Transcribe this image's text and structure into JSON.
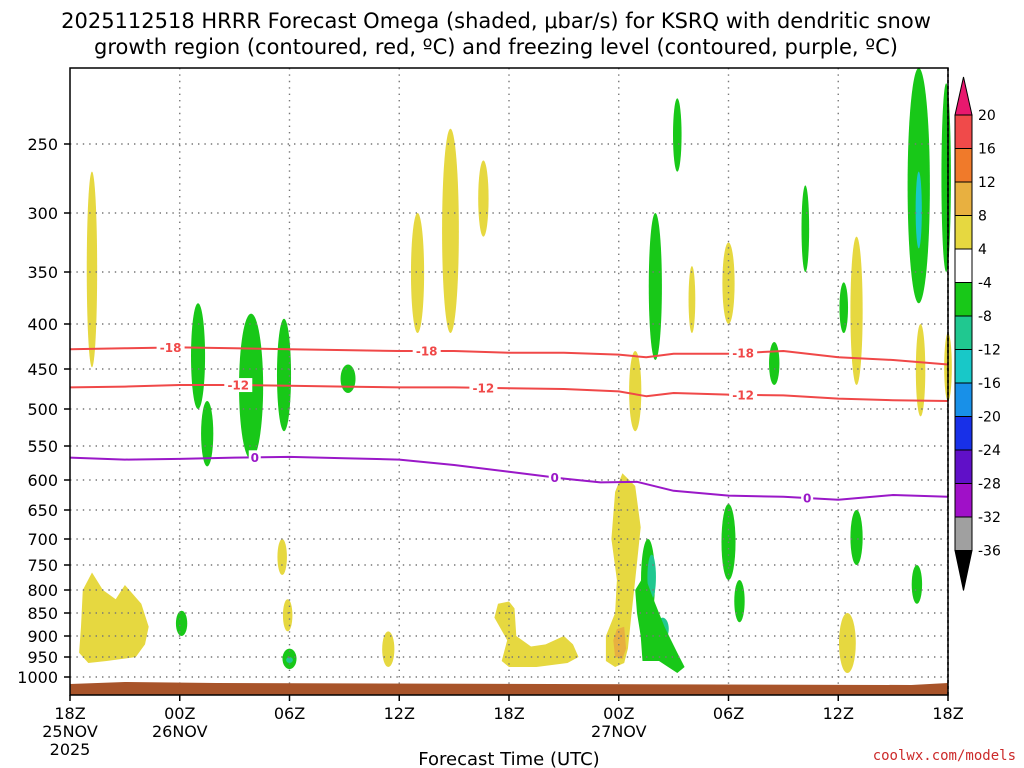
{
  "chart_data": {
    "type": "contour",
    "title_line1": "2025112518 HRRR Forecast Omega (shaded, μbar/s) for KSRQ with dendritic snow",
    "title_line2": "growth region (contoured, red, ºC) and freezing level (contoured, purple, ºC)",
    "xlabel": "Forecast Time (UTC)",
    "credit": "coolwx.com/models",
    "x_range_hours": [
      0,
      48
    ],
    "y_range_hpa": [
      1030,
      200
    ],
    "x_ticks": [
      {
        "h": 0,
        "l1": "18Z",
        "l2": "25NOV",
        "l3": "2025"
      },
      {
        "h": 6,
        "l1": "00Z",
        "l2": "26NOV",
        "l3": ""
      },
      {
        "h": 12,
        "l1": "06Z",
        "l2": "",
        "l3": ""
      },
      {
        "h": 18,
        "l1": "12Z",
        "l2": "",
        "l3": ""
      },
      {
        "h": 24,
        "l1": "18Z",
        "l2": "",
        "l3": ""
      },
      {
        "h": 30,
        "l1": "00Z",
        "l2": "27NOV",
        "l3": ""
      },
      {
        "h": 36,
        "l1": "06Z",
        "l2": "",
        "l3": ""
      },
      {
        "h": 42,
        "l1": "12Z",
        "l2": "",
        "l3": ""
      },
      {
        "h": 48,
        "l1": "18Z",
        "l2": "",
        "l3": ""
      }
    ],
    "y_ticks": [
      250,
      300,
      350,
      400,
      450,
      500,
      550,
      600,
      650,
      700,
      750,
      800,
      850,
      900,
      950,
      1000
    ],
    "colorbar": {
      "labels": [
        "20",
        "16",
        "12",
        "8",
        "4",
        "-4",
        "-8",
        "-12",
        "-16",
        "-20",
        "-24",
        "-28",
        "-32",
        "-36"
      ],
      "colors": [
        "#e8186e",
        "#f04a4a",
        "#f07a2a",
        "#e8b040",
        "#e6d840",
        "#ffffff",
        "#18c818",
        "#20c890",
        "#18c8c8",
        "#1890e8",
        "#1830e8",
        "#6010c8",
        "#a010c8",
        "#a0a0a0",
        "#000000"
      ]
    },
    "contours": [
      {
        "name": "dendritic-18C-isotherm",
        "label": "-18",
        "color": "#f04848",
        "x": [
          0,
          3,
          6,
          9,
          12,
          15,
          18,
          21,
          24,
          27,
          30,
          31.5,
          33,
          36,
          39,
          42,
          45,
          48
        ],
        "y": [
          428,
          427,
          426,
          427,
          428,
          429,
          430,
          430,
          432,
          432,
          434,
          437,
          433,
          433,
          430,
          437,
          440,
          445
        ],
        "label_hours": [
          5.5,
          19.5,
          36.8
        ]
      },
      {
        "name": "dendritic-12C-isotherm",
        "label": "-12",
        "color": "#f04848",
        "x": [
          0,
          3,
          6,
          9,
          12,
          15,
          18,
          21,
          24,
          27,
          30,
          31.5,
          33,
          36,
          39,
          42,
          45,
          48
        ],
        "y": [
          473,
          472,
          470,
          470,
          471,
          472,
          473,
          473,
          474,
          475,
          478,
          484,
          480,
          482,
          483,
          487,
          489,
          490
        ],
        "label_hours": [
          9.2,
          22.6,
          36.8
        ]
      },
      {
        "name": "freezing-level-0C",
        "label": "0",
        "color": "#9a18c8",
        "x": [
          0,
          3,
          6,
          9,
          12,
          15,
          18,
          21,
          24,
          27,
          29,
          31,
          33,
          36,
          39,
          42,
          45,
          48
        ],
        "y": [
          567,
          570,
          569,
          567,
          566,
          568,
          570,
          578,
          588,
          598,
          604,
          603,
          618,
          626,
          628,
          633,
          625,
          628
        ],
        "label_hours": [
          10.1,
          26.5,
          40.3
        ]
      }
    ],
    "shaded_regions": [
      {
        "h": 1.2,
        "p0": 270,
        "p1": 448,
        "w": 0.35,
        "c": "#e6d840"
      },
      {
        "h": 22.6,
        "p0": 262,
        "p1": 320,
        "w": 0.35,
        "c": "#e6d840"
      },
      {
        "h": 20.8,
        "p0": 240,
        "p1": 410,
        "w": 0.7,
        "c": "#e6d840"
      },
      {
        "h": 19.0,
        "p0": 300,
        "p1": 410,
        "w": 0.5,
        "c": "#e6d840"
      },
      {
        "h": 36.0,
        "p0": 325,
        "p1": 400,
        "w": 0.45,
        "c": "#e6d840"
      },
      {
        "h": 34.0,
        "p0": 345,
        "p1": 410,
        "w": 0.15,
        "c": "#e6d840"
      },
      {
        "h": 43.0,
        "p0": 320,
        "p1": 470,
        "w": 0.45,
        "c": "#e6d840"
      },
      {
        "h": 46.5,
        "p0": 400,
        "p1": 510,
        "w": 0.3,
        "c": "#e6d840"
      },
      {
        "h": 30.9,
        "p0": 430,
        "p1": 530,
        "w": 0.45,
        "c": "#e6d840"
      },
      {
        "h": 48.0,
        "p0": 410,
        "p1": 490,
        "w": 0.2,
        "c": "#e6d840"
      },
      {
        "h": 11.6,
        "p0": 700,
        "p1": 770,
        "w": 0.3,
        "c": "#e6d840"
      },
      {
        "h": 11.9,
        "p0": 820,
        "p1": 890,
        "w": 0.3,
        "c": "#e6d840"
      },
      {
        "h": 17.4,
        "p0": 890,
        "p1": 975,
        "w": 0.45,
        "c": "#e6d840"
      },
      {
        "h": 36.7,
        "p0": 790,
        "p1": 860,
        "w": 0.12,
        "c": "#e6d840"
      },
      {
        "h": 42.5,
        "p0": 850,
        "p1": 990,
        "w": 0.7,
        "c": "#e6d840"
      },
      {
        "h": 7.0,
        "p0": 380,
        "p1": 500,
        "w": 0.55,
        "c": "#18c818"
      },
      {
        "h": 7.5,
        "p0": 490,
        "p1": 580,
        "w": 0.45,
        "c": "#18c818"
      },
      {
        "h": 9.9,
        "p0": 390,
        "p1": 570,
        "w": 1.1,
        "c": "#18c818"
      },
      {
        "h": 11.7,
        "p0": 395,
        "p1": 530,
        "w": 0.55,
        "c": "#18c818"
      },
      {
        "h": 15.2,
        "p0": 445,
        "p1": 480,
        "w": 0.6,
        "c": "#18c818"
      },
      {
        "h": 33.2,
        "p0": 220,
        "p1": 270,
        "w": 0.25,
        "c": "#18c818"
      },
      {
        "h": 32.0,
        "p0": 300,
        "p1": 440,
        "w": 0.5,
        "c": "#18c818"
      },
      {
        "h": 38.5,
        "p0": 420,
        "p1": 470,
        "w": 0.35,
        "c": "#18c818"
      },
      {
        "h": 40.2,
        "p0": 280,
        "p1": 350,
        "w": 0.2,
        "c": "#18c818"
      },
      {
        "h": 42.3,
        "p0": 360,
        "p1": 410,
        "w": 0.25,
        "c": "#18c818"
      },
      {
        "h": 46.4,
        "p0": 200,
        "p1": 380,
        "w": 1.0,
        "c": "#18c818"
      },
      {
        "h": 47.9,
        "p0": 210,
        "p1": 350,
        "w": 0.3,
        "c": "#18c818"
      },
      {
        "h": 36.0,
        "p0": 640,
        "p1": 780,
        "w": 0.55,
        "c": "#18c818"
      },
      {
        "h": 43.0,
        "p0": 650,
        "p1": 750,
        "w": 0.45,
        "c": "#18c818"
      },
      {
        "h": 46.3,
        "p0": 750,
        "p1": 830,
        "w": 0.35,
        "c": "#18c818"
      },
      {
        "h": 36.6,
        "p0": 780,
        "p1": 870,
        "w": 0.35,
        "c": "#18c818"
      },
      {
        "h": 6.1,
        "p0": 845,
        "p1": 900,
        "w": 0.4,
        "c": "#18c818"
      },
      {
        "h": 12.0,
        "p0": 930,
        "p1": 980,
        "w": 0.55,
        "c": "#18c818"
      },
      {
        "h": 31.6,
        "p0": 700,
        "p1": 870,
        "w": 0.55,
        "c": "#18c818"
      },
      {
        "h": 31.8,
        "p0": 730,
        "p1": 820,
        "w": 0.25,
        "c": "#20c890"
      },
      {
        "h": 32.4,
        "p0": 860,
        "p1": 910,
        "w": 0.45,
        "c": "#20c890"
      },
      {
        "h": 46.4,
        "p0": 270,
        "p1": 330,
        "w": 0.12,
        "c": "#18c8c8"
      },
      {
        "h": 12.0,
        "p0": 950,
        "p1": 965,
        "w": 0.15,
        "c": "#20c890"
      }
    ],
    "composite_regions": [
      {
        "name": "left-low-level-yellow-blob",
        "c": "#e6d840",
        "pts": [
          [
            0.7,
            800
          ],
          [
            1.2,
            765
          ],
          [
            1.8,
            800
          ],
          [
            2.5,
            820
          ],
          [
            3.0,
            790
          ],
          [
            3.9,
            830
          ],
          [
            4.3,
            880
          ],
          [
            4.1,
            920
          ],
          [
            3.6,
            950
          ],
          [
            2.0,
            960
          ],
          [
            1.0,
            965
          ],
          [
            0.5,
            940
          ],
          [
            0.6,
            880
          ]
        ]
      },
      {
        "name": "morning-low-yellow-blob",
        "c": "#e6d840",
        "pts": [
          [
            23.4,
            830
          ],
          [
            24.0,
            825
          ],
          [
            24.3,
            840
          ],
          [
            24.4,
            900
          ],
          [
            25.2,
            925
          ],
          [
            26.0,
            920
          ],
          [
            27.0,
            900
          ],
          [
            27.5,
            920
          ],
          [
            27.8,
            950
          ],
          [
            27.2,
            965
          ],
          [
            25.5,
            975
          ],
          [
            24.0,
            975
          ],
          [
            23.6,
            960
          ],
          [
            23.9,
            910
          ],
          [
            23.2,
            860
          ]
        ]
      },
      {
        "name": "midday-yellow-plume",
        "c": "#e6d840",
        "pts": [
          [
            29.8,
            620
          ],
          [
            30.2,
            590
          ],
          [
            30.9,
            610
          ],
          [
            31.2,
            680
          ],
          [
            30.9,
            780
          ],
          [
            30.7,
            850
          ],
          [
            30.5,
            930
          ],
          [
            30.3,
            965
          ],
          [
            29.8,
            975
          ],
          [
            29.3,
            960
          ],
          [
            29.3,
            900
          ],
          [
            29.8,
            850
          ],
          [
            29.9,
            780
          ],
          [
            29.6,
            700
          ]
        ]
      },
      {
        "name": "midday-orange-core",
        "c": "#e8b040",
        "pts": [
          [
            29.9,
            885
          ],
          [
            30.3,
            880
          ],
          [
            30.4,
            930
          ],
          [
            30.2,
            955
          ],
          [
            29.8,
            950
          ],
          [
            29.7,
            910
          ]
        ]
      },
      {
        "name": "low-level-green-tail",
        "c": "#18c818",
        "pts": [
          [
            30.9,
            800
          ],
          [
            31.4,
            770
          ],
          [
            31.9,
            820
          ],
          [
            32.5,
            880
          ],
          [
            33.2,
            940
          ],
          [
            33.6,
            975
          ],
          [
            33.2,
            990
          ],
          [
            32.2,
            960
          ],
          [
            31.3,
            960
          ],
          [
            31.2,
            900
          ],
          [
            31.0,
            850
          ]
        ]
      }
    ]
  }
}
